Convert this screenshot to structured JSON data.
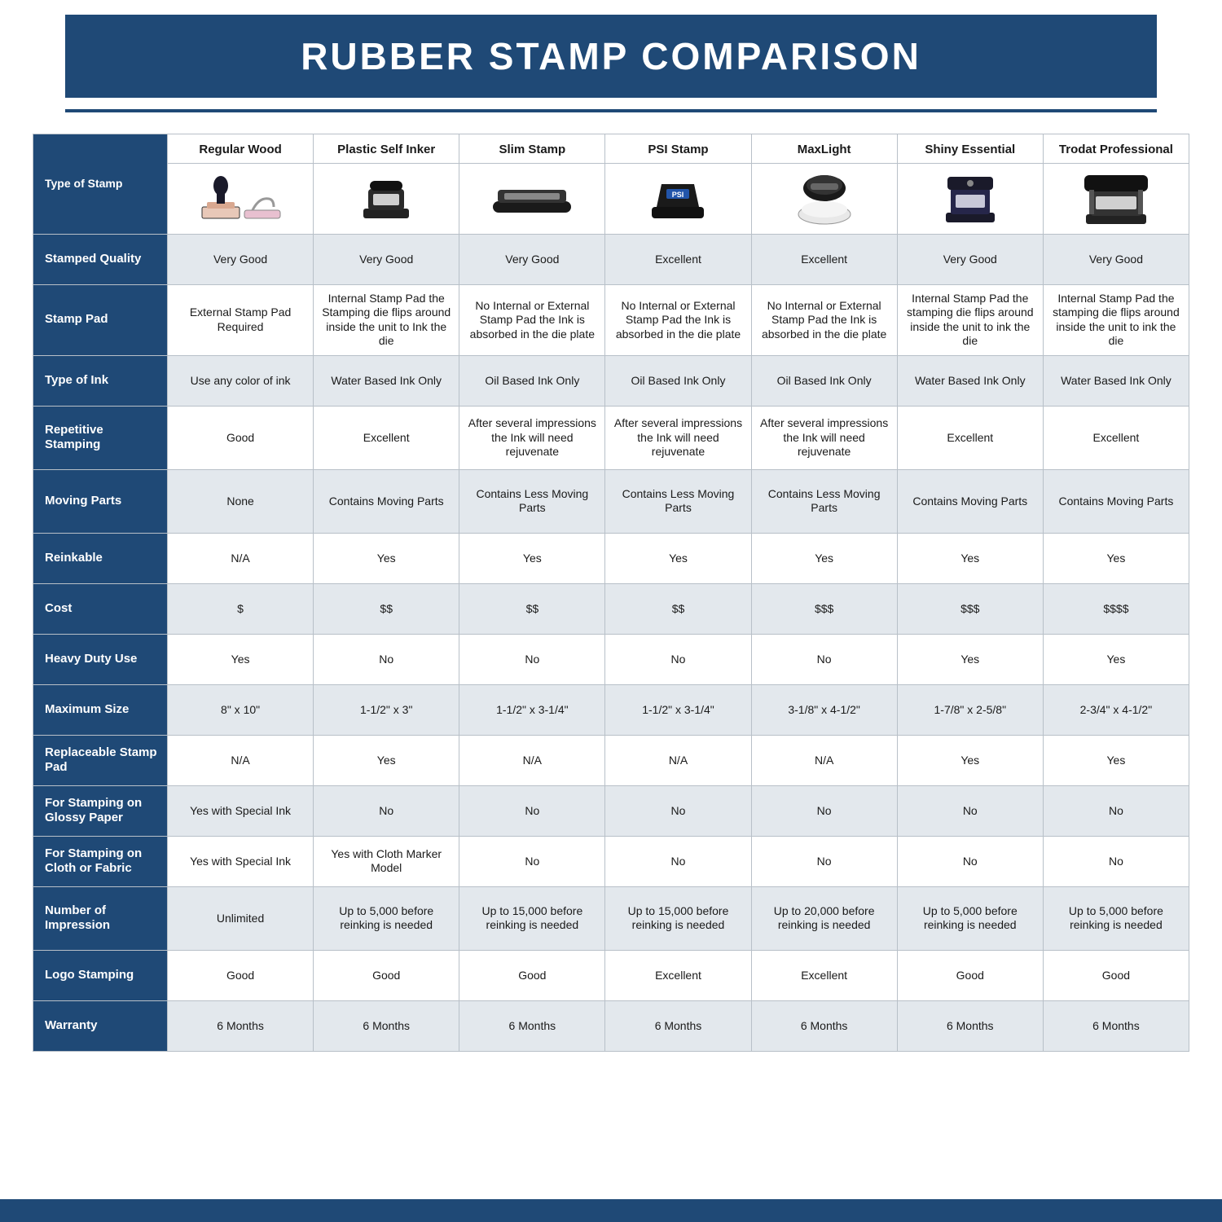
{
  "title": "RUBBER STAMP COMPARISON",
  "colors": {
    "brand": "#1f4976",
    "row_alt": "#e3e8ed",
    "border": "#b8c0c8",
    "text": "#1a1a1a",
    "white": "#ffffff"
  },
  "columns": [
    "Regular Wood",
    "Plastic Self Inker",
    "Slim Stamp",
    "PSI Stamp",
    "MaxLight",
    "Shiny Essential",
    "Trodat Professional"
  ],
  "corner_label": "Type of Stamp",
  "rows": [
    {
      "label": "Stamped Quality",
      "height": "med",
      "cells": [
        "Very Good",
        "Very Good",
        "Very Good",
        "Excellent",
        "Excellent",
        "Very Good",
        "Very Good"
      ]
    },
    {
      "label": "Stamp Pad",
      "height": "tall",
      "cells": [
        "External Stamp Pad Required",
        "Internal Stamp Pad the Stamping die flips around inside the unit to Ink the die",
        "No Internal or External Stamp Pad the Ink is absorbed in the die plate",
        "No Internal or External Stamp Pad the Ink is absorbed in the die plate",
        "No Internal or External Stamp Pad the Ink is absorbed in the die plate",
        "Internal Stamp Pad the stamping die flips around inside the unit to ink the die",
        "Internal Stamp Pad the stamping die flips around inside the unit to ink the die"
      ]
    },
    {
      "label": "Type of Ink",
      "height": "med",
      "cells": [
        "Use any color of ink",
        "Water Based Ink Only",
        "Oil Based Ink Only",
        "Oil Based Ink Only",
        "Oil Based Ink Only",
        "Water Based Ink Only",
        "Water Based Ink Only"
      ]
    },
    {
      "label": "Repetitive Stamping",
      "height": "tall",
      "cells": [
        "Good",
        "Excellent",
        "After several impressions the Ink will need rejuvenate",
        "After several impressions the Ink will need rejuvenate",
        "After several impressions the Ink will need rejuvenate",
        "Excellent",
        "Excellent"
      ]
    },
    {
      "label": "Moving Parts",
      "height": "tall",
      "cells": [
        "None",
        "Contains Moving Parts",
        "Contains Less Moving Parts",
        "Contains Less Moving Parts",
        "Contains Less Moving Parts",
        "Contains Moving Parts",
        "Contains Moving Parts"
      ]
    },
    {
      "label": "Reinkable",
      "height": "med",
      "cells": [
        "N/A",
        "Yes",
        "Yes",
        "Yes",
        "Yes",
        "Yes",
        "Yes"
      ]
    },
    {
      "label": "Cost",
      "height": "med",
      "cells": [
        "$",
        "$$",
        "$$",
        "$$",
        "$$$",
        "$$$",
        "$$$$"
      ]
    },
    {
      "label": "Heavy Duty Use",
      "height": "med",
      "cells": [
        "Yes",
        "No",
        "No",
        "No",
        "No",
        "Yes",
        "Yes"
      ]
    },
    {
      "label": "Maximum Size",
      "height": "med",
      "cells": [
        "8\" x 10\"",
        "1-1/2\" x 3\"",
        "1-1/2\" x 3-1/4\"",
        "1-1/2\" x 3-1/4\"",
        "3-1/8\" x 4-1/2\"",
        "1-7/8\" x 2-5/8\"",
        "2-3/4\" x 4-1/2\""
      ]
    },
    {
      "label": "Replaceable Stamp Pad",
      "height": "med",
      "cells": [
        "N/A",
        "Yes",
        "N/A",
        "N/A",
        "N/A",
        "Yes",
        "Yes"
      ]
    },
    {
      "label": "For Stamping on Glossy Paper",
      "height": "med",
      "cells": [
        "Yes with Special Ink",
        "No",
        "No",
        "No",
        "No",
        "No",
        "No"
      ]
    },
    {
      "label": "For Stamping on Cloth or Fabric",
      "height": "med",
      "cells": [
        "Yes with Special Ink",
        "Yes with Cloth Marker Model",
        "No",
        "No",
        "No",
        "No",
        "No"
      ]
    },
    {
      "label": "Number of Impression",
      "height": "tall",
      "cells": [
        "Unlimited",
        "Up to 5,000 before reinking is needed",
        "Up to 15,000 before reinking is needed",
        "Up to 15,000 before reinking is needed",
        "Up to 20,000 before reinking is needed",
        "Up to 5,000 before reinking is needed",
        "Up to 5,000 before reinking is needed"
      ]
    },
    {
      "label": "Logo Stamping",
      "height": "med",
      "cells": [
        "Good",
        "Good",
        "Good",
        "Excellent",
        "Excellent",
        "Good",
        "Good"
      ]
    },
    {
      "label": "Warranty",
      "height": "med",
      "cells": [
        "6 Months",
        "6 Months",
        "6 Months",
        "6 Months",
        "6 Months",
        "6 Months",
        "6 Months"
      ]
    }
  ],
  "icons": [
    "wood-stamp-icon",
    "self-inker-icon",
    "slim-stamp-icon",
    "psi-stamp-icon",
    "maxlight-stamp-icon",
    "shiny-essential-icon",
    "trodat-professional-icon"
  ]
}
